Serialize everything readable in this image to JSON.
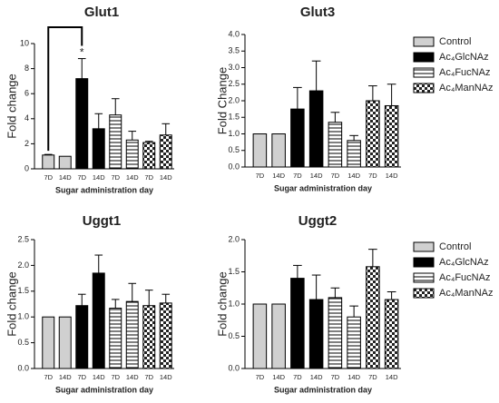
{
  "chart_data": [
    {
      "type": "bar",
      "title": "Glut1",
      "ylabel": "Fold change",
      "xlabel": "Sugar administration day",
      "categories": [
        "7D",
        "14D"
      ],
      "ylim": [
        0,
        10
      ],
      "yticks": [
        0,
        2,
        4,
        6,
        8,
        10
      ],
      "annotation": "*",
      "series": [
        {
          "name": "Control",
          "color": "#d0d0d0",
          "values": [
            1.1,
            1.0
          ],
          "errors": [
            0.05,
            0
          ]
        },
        {
          "name": "Ac₄GlcNAz",
          "color": "#000000",
          "values": [
            7.2,
            3.2
          ],
          "errors": [
            1.6,
            1.2
          ]
        },
        {
          "name": "Ac₄FucNAz",
          "color": "#ffffff",
          "pattern": "stripes",
          "values": [
            4.3,
            2.3
          ],
          "errors": [
            1.3,
            0.7
          ]
        },
        {
          "name": "Ac₄ManNAz",
          "color": "#ffffff",
          "pattern": "checks",
          "values": [
            2.1,
            2.7
          ],
          "errors": [
            0.1,
            0.9
          ]
        }
      ]
    },
    {
      "type": "bar",
      "title": "Glut3",
      "ylabel": "Fold Change",
      "xlabel": "Sugar administration day",
      "categories": [
        "7D",
        "14D"
      ],
      "ylim": [
        0,
        4
      ],
      "yticks": [
        {
          "value": 0,
          "label": "0.0"
        },
        0.5,
        {
          "value": 1,
          "label": "1.0"
        },
        1.5,
        {
          "value": 2,
          "label": "2.0"
        },
        2.5,
        {
          "value": 3,
          "label": "3.0"
        },
        3.5,
        {
          "value": 4,
          "label": "4.0"
        }
      ],
      "legend": "right",
      "series": [
        {
          "name": "Control",
          "color": "#d0d0d0",
          "values": [
            1.0,
            1.0
          ],
          "errors": [
            0,
            0
          ]
        },
        {
          "name": "Ac₄GlcNAz",
          "color": "#000000",
          "values": [
            1.75,
            2.3
          ],
          "errors": [
            0.65,
            0.9
          ]
        },
        {
          "name": "Ac₄FucNAz",
          "color": "#ffffff",
          "pattern": "stripes",
          "values": [
            1.35,
            0.8
          ],
          "errors": [
            0.3,
            0.15
          ]
        },
        {
          "name": "Ac₄ManNAz",
          "color": "#ffffff",
          "pattern": "checks",
          "values": [
            2.0,
            1.85
          ],
          "errors": [
            0.45,
            0.65
          ]
        }
      ]
    },
    {
      "type": "bar",
      "title": "Uggt1",
      "ylabel": "Fold change",
      "xlabel": "Sugar administration day",
      "categories": [
        "7D",
        "14D"
      ],
      "ylim": [
        0,
        2.5
      ],
      "yticks": [
        {
          "value": 0,
          "label": "0.0"
        },
        0.5,
        {
          "value": 1,
          "label": "1.0"
        },
        1.5,
        {
          "value": 2,
          "label": "2.0"
        },
        2.5
      ],
      "series": [
        {
          "name": "Control",
          "color": "#d0d0d0",
          "values": [
            1.0,
            1.0
          ],
          "errors": [
            0,
            0
          ]
        },
        {
          "name": "Ac₄GlcNAz",
          "color": "#000000",
          "values": [
            1.22,
            1.85
          ],
          "errors": [
            0.22,
            0.35
          ]
        },
        {
          "name": "Ac₄FucNAz",
          "color": "#ffffff",
          "pattern": "stripes",
          "values": [
            1.17,
            1.3
          ],
          "errors": [
            0.17,
            0.35
          ]
        },
        {
          "name": "Ac₄ManNAz",
          "color": "#ffffff",
          "pattern": "checks",
          "values": [
            1.22,
            1.27
          ],
          "errors": [
            0.3,
            0.17
          ]
        }
      ]
    },
    {
      "type": "bar",
      "title": "Uggt2",
      "ylabel": "Fold change",
      "xlabel": "Sugar administration day",
      "categories": [
        "7D",
        "14D"
      ],
      "ylim": [
        0,
        2
      ],
      "yticks": [
        {
          "value": 0,
          "label": "0.0"
        },
        0.5,
        {
          "value": 1,
          "label": "1.0"
        },
        1.5,
        {
          "value": 2,
          "label": "2.0"
        }
      ],
      "legend": "right",
      "series": [
        {
          "name": "Control",
          "color": "#d0d0d0",
          "values": [
            1.0,
            1.0
          ],
          "errors": [
            0,
            0
          ]
        },
        {
          "name": "Ac₄GlcNAz",
          "color": "#000000",
          "values": [
            1.4,
            1.07
          ],
          "errors": [
            0.2,
            0.38
          ]
        },
        {
          "name": "Ac₄FucNAz",
          "color": "#ffffff",
          "pattern": "stripes",
          "values": [
            1.1,
            0.8
          ],
          "errors": [
            0.15,
            0.17
          ]
        },
        {
          "name": "Ac₄ManNAz",
          "color": "#ffffff",
          "pattern": "checks",
          "values": [
            1.58,
            1.07
          ],
          "errors": [
            0.27,
            0.12
          ]
        }
      ]
    }
  ]
}
